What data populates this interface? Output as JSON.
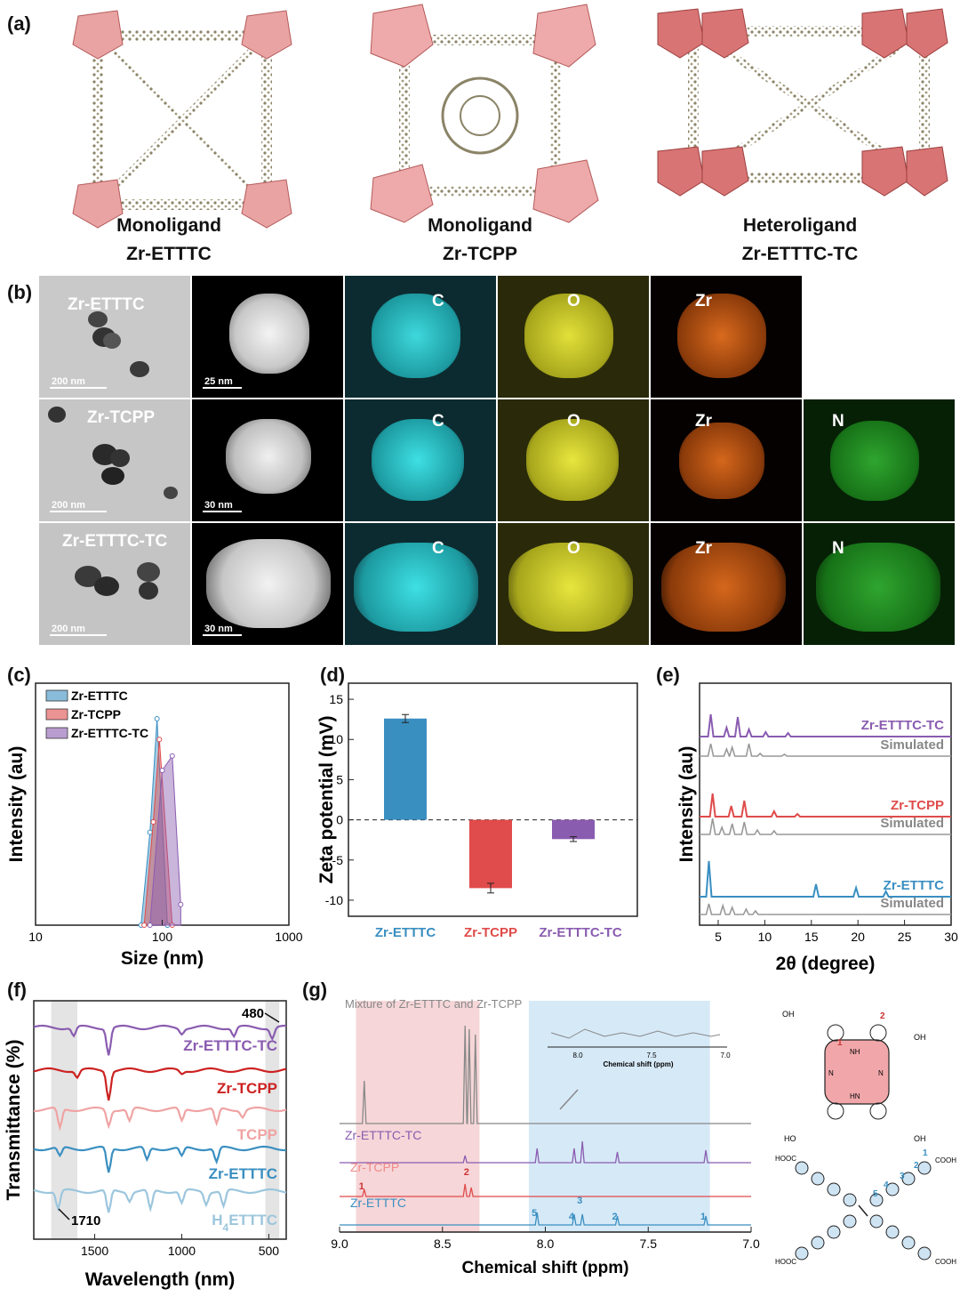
{
  "panel_labels": {
    "a": "(a)",
    "b": "(b)",
    "c": "(c)",
    "d": "(d)",
    "e": "(e)",
    "f": "(f)",
    "g": "(g)"
  },
  "structures": [
    {
      "line1": "Monoligand",
      "line2": "Zr-ETTTC"
    },
    {
      "line1": "Monoligand",
      "line2": "Zr-TCPP"
    },
    {
      "line1": "Heteroligand",
      "line2": "Zr-ETTTC-TC"
    }
  ],
  "tem": {
    "rows": [
      {
        "sample": "Zr-ETTTC",
        "tem_scale": "200 nm",
        "haadf_scale": "25 nm",
        "maps": [
          "C",
          "O",
          "Zr"
        ]
      },
      {
        "sample": "Zr-TCPP",
        "tem_scale": "200 nm",
        "haadf_scale": "30 nm",
        "maps": [
          "C",
          "O",
          "Zr",
          "N"
        ]
      },
      {
        "sample": "Zr-ETTTC-TC",
        "tem_scale": "200 nm",
        "haadf_scale": "30 nm",
        "maps": [
          "C",
          "O",
          "Zr",
          "N"
        ]
      }
    ]
  },
  "colors": {
    "ettc": "#3a8fc1",
    "tcpp": "#e04b4b",
    "hetero": "#8a5cb0",
    "gray": "#999999",
    "pink_band": "#f6d6d8",
    "blue_band": "#d6e9f7"
  },
  "chart_data": [
    {
      "id": "c",
      "type": "area",
      "xscale": "log",
      "xlabel": "Size (nm)",
      "ylabel": "Intensity (au)",
      "xlim": [
        10,
        1000
      ],
      "xticks": [
        "10",
        "100",
        "1000"
      ],
      "series": [
        {
          "name": "Zr-ETTTC",
          "x": [
            68,
            80,
            91,
            110
          ],
          "y": [
            0,
            0.45,
            1.0,
            0
          ]
        },
        {
          "name": "Zr-TCPP",
          "x": [
            72,
            85,
            95,
            120
          ],
          "y": [
            0,
            0.5,
            0.9,
            0
          ]
        },
        {
          "name": "Zr-ETTTC-TC",
          "x": [
            80,
            100,
            120,
            140
          ],
          "y": [
            0,
            0.75,
            0.82,
            0.1
          ]
        }
      ]
    },
    {
      "id": "d",
      "type": "bar",
      "ylabel": "Zeta potential (mV)",
      "ylim": [
        -12,
        17
      ],
      "yticks": [
        "15",
        "10",
        "5",
        "0",
        "-5",
        "-10"
      ],
      "categories": [
        "Zr-ETTTC",
        "Zr-TCPP",
        "Zr-ETTTC-TC"
      ],
      "values": [
        12.6,
        -8.5,
        -2.4
      ],
      "errors": [
        0.5,
        0.6,
        0.3
      ]
    },
    {
      "id": "e",
      "type": "line",
      "xlabel": "2θ (degree)",
      "ylabel": "Intensity (au)",
      "xlim": [
        3,
        30
      ],
      "xticks": [
        "5",
        "10",
        "15",
        "20",
        "25",
        "30"
      ],
      "series": [
        {
          "name": "Zr-ETTTC-TC",
          "peaks": [
            4.2,
            5.9,
            7.1,
            8.3,
            10.1,
            12.5
          ]
        },
        {
          "name": "Simulated",
          "peaks": [
            4.2,
            5.9,
            6.5,
            8.3,
            9.5,
            12.1
          ]
        },
        {
          "name": "Zr-TCPP",
          "peaks": [
            4.4,
            6.4,
            7.8,
            11.0,
            13.5
          ]
        },
        {
          "name": "Simulated",
          "peaks": [
            4.4,
            5.4,
            6.5,
            7.8,
            9.2,
            11.0
          ]
        },
        {
          "name": "Zr-ETTTC",
          "peaks": [
            4.0,
            15.5,
            19.8,
            23.0
          ]
        },
        {
          "name": "Simulated",
          "peaks": [
            4.0,
            5.5,
            6.5,
            8.0,
            9.0
          ]
        }
      ]
    },
    {
      "id": "f",
      "type": "line",
      "xlabel": "Wavelength (nm)",
      "ylabel": "Transmittance (%)",
      "xlim": [
        1850,
        400
      ],
      "xticks": [
        "1500",
        "1000",
        "500"
      ],
      "series": [
        {
          "name": "Zr-ETTTC-TC"
        },
        {
          "name": "Zr-TCPP"
        },
        {
          "name": "TCPP"
        },
        {
          "name": "Zr-ETTTC"
        },
        {
          "name": "H4ETTTC"
        }
      ],
      "annotations": [
        "480",
        "1710"
      ]
    },
    {
      "id": "g",
      "type": "line",
      "xlabel": "Chemical shift (ppm)",
      "xlim": [
        9.0,
        7.0
      ],
      "xticks": [
        "9.0",
        "8.5",
        "8.0",
        "7.5",
        "7.0"
      ],
      "series": [
        {
          "name": "Mixture of Zr-ETTTC and Zr-TCPP",
          "peaks": [
            8.88,
            8.39,
            8.37,
            8.34
          ]
        },
        {
          "name": "Zr-ETTTC-TC",
          "peaks": [
            8.39,
            8.04,
            7.86,
            7.82,
            7.65,
            7.22
          ]
        },
        {
          "name": "Zr-TCPP",
          "peaks": [
            8.88,
            8.39,
            8.36
          ]
        },
        {
          "name": "Zr-ETTTC",
          "peaks": [
            8.04,
            7.86,
            7.82,
            7.65,
            7.22
          ]
        }
      ],
      "peak_labels": [
        "1",
        "2",
        "5",
        "4",
        "3",
        "2",
        "1"
      ],
      "inset": {
        "xlabel": "Chemical shift (ppm)",
        "xticks": [
          "8.0",
          "7.5",
          "7.0"
        ]
      },
      "structures": {
        "tcpp": {
          "numbers": [
            "1",
            "2"
          ],
          "groups": [
            "OH",
            "OH",
            "HO",
            "OH",
            "N",
            "N",
            "NH",
            "HN"
          ]
        },
        "etttc": {
          "numbers": [
            "5",
            "4",
            "3",
            "2",
            "1"
          ],
          "groups": [
            "COOH",
            "HOOC",
            "HOOC",
            "COOH"
          ]
        }
      }
    }
  ]
}
